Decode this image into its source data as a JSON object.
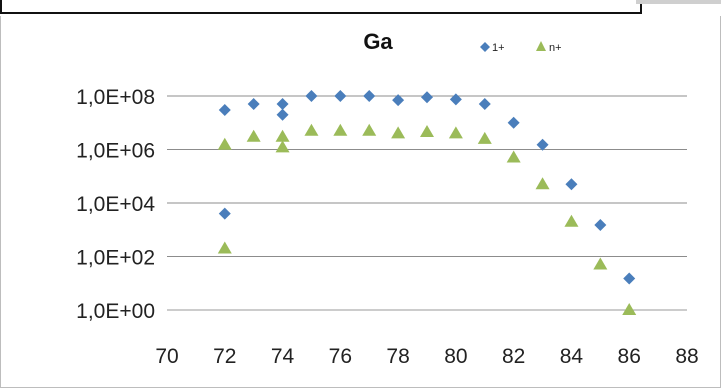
{
  "chart_data": {
    "type": "scatter",
    "title": "Ga",
    "xlabel": "",
    "ylabel": "",
    "y_scale": "log",
    "xlim": [
      70,
      88
    ],
    "ylim": [
      1,
      100000000
    ],
    "x_ticks": [
      70,
      72,
      74,
      76,
      78,
      80,
      82,
      84,
      86,
      88
    ],
    "x_tick_labels": [
      "70",
      "72",
      "74",
      "76",
      "78",
      "80",
      "82",
      "84",
      "86",
      "88"
    ],
    "y_ticks": [
      1,
      100,
      10000,
      1000000,
      100000000
    ],
    "y_tick_labels": [
      "1,0E+00",
      "1,0E+02",
      "1,0E+04",
      "1,0E+06",
      "1,0E+08"
    ],
    "grid": "horizontal",
    "legend_position": "top-right",
    "series": [
      {
        "name": "1+",
        "marker": "diamond",
        "color": "#4a7ebb",
        "points": [
          {
            "x": 72,
            "y": 30000000
          },
          {
            "x": 72,
            "y": 4000
          },
          {
            "x": 73,
            "y": 50000000
          },
          {
            "x": 74,
            "y": 50000000
          },
          {
            "x": 74,
            "y": 20000000
          },
          {
            "x": 75,
            "y": 100000000
          },
          {
            "x": 76,
            "y": 100000000
          },
          {
            "x": 77,
            "y": 100000000
          },
          {
            "x": 78,
            "y": 70000000
          },
          {
            "x": 79,
            "y": 90000000
          },
          {
            "x": 80,
            "y": 75000000
          },
          {
            "x": 81,
            "y": 50000000
          },
          {
            "x": 82,
            "y": 10000000
          },
          {
            "x": 83,
            "y": 1500000
          },
          {
            "x": 84,
            "y": 50000
          },
          {
            "x": 85,
            "y": 1500
          },
          {
            "x": 86,
            "y": 15
          }
        ]
      },
      {
        "name": "n+",
        "marker": "triangle",
        "color": "#9bbb59",
        "points": [
          {
            "x": 72,
            "y": 1500000
          },
          {
            "x": 72,
            "y": 200
          },
          {
            "x": 73,
            "y": 3000000
          },
          {
            "x": 74,
            "y": 3000000
          },
          {
            "x": 74,
            "y": 1200000
          },
          {
            "x": 75,
            "y": 5000000
          },
          {
            "x": 76,
            "y": 5000000
          },
          {
            "x": 77,
            "y": 5000000
          },
          {
            "x": 78,
            "y": 4000000
          },
          {
            "x": 79,
            "y": 4500000
          },
          {
            "x": 80,
            "y": 4000000
          },
          {
            "x": 81,
            "y": 2500000
          },
          {
            "x": 82,
            "y": 500000
          },
          {
            "x": 83,
            "y": 50000
          },
          {
            "x": 84,
            "y": 2000
          },
          {
            "x": 85,
            "y": 50
          },
          {
            "x": 86,
            "y": 1
          }
        ]
      }
    ]
  }
}
